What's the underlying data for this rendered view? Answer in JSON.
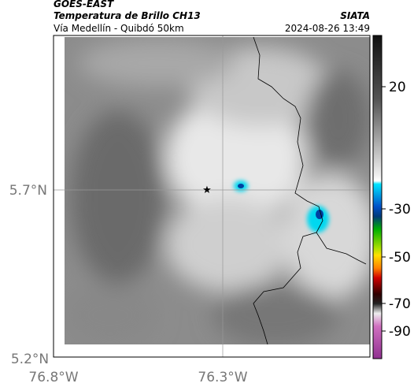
{
  "header": {
    "source": "GOES-EAST",
    "product": "Temperatura de Brillo CH13",
    "org": "SIATA",
    "region": "Vía Medellín - Quibdó 50km",
    "timestamp": "2024-08-26 13:49"
  },
  "map": {
    "lat_labels": [
      "5.7°N",
      "5.2°N"
    ],
    "lon_labels": [
      "76.8°W",
      "76.3°W"
    ]
  },
  "colorbar": {
    "ticks": [
      20,
      -30,
      -50,
      -70,
      -90
    ]
  }
}
